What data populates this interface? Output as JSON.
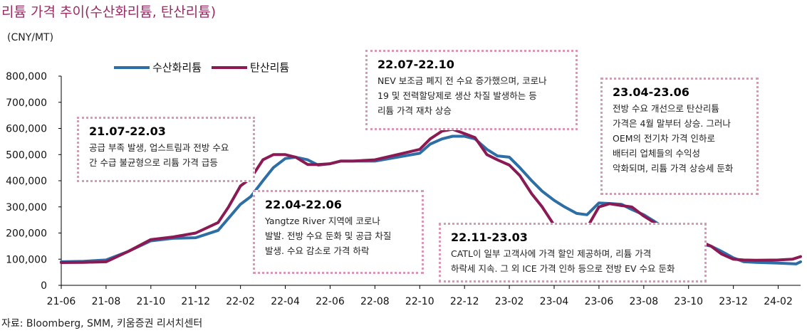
{
  "title": "리튬 가격 추이(수산화리튬, 탄산리튬)",
  "unit": "(CNY/MT)",
  "source": "자료: Bloomberg, SMM, 키움증권 리서치센터",
  "colors": {
    "hydroxide": "#2e6ea6",
    "carbonate": "#8b1a54",
    "annotation_border": "#d79ab5",
    "title": "#9c2a64"
  },
  "legend": [
    {
      "label": "수산화리튬",
      "color": "#2e6ea6"
    },
    {
      "label": "탄산리튬",
      "color": "#8b1a54"
    }
  ],
  "annotations": [
    {
      "period": "21.07-22.03",
      "text": "공급 부족 발생, 업스트림과 전방 수요\n간 수급 불균형으로 리튬 가격 급등"
    },
    {
      "period": "22.04-22.06",
      "text": "Yangtze River 지역에 코로나\n발발. 전방 수요 둔화 및 공급 차질\n발생. 수요 감소로 가격 하락"
    },
    {
      "period": "22.07-22.10",
      "text": "NEV 보조금 폐지 전 수요 증가했으며, 코로나\n19 및 전력할당제로 생산 차질 발생하는 등\n리튬 가격 재차 상승"
    },
    {
      "period": "22.11-23.03",
      "text": "CATL이 일부 고객사에 가격 할인 제공하며, 리튬 가격\n하락세 지속. 그 외 ICE 가격 인하 등으로 전방 EV 수요 둔화"
    },
    {
      "period": "23.04-23.06",
      "text": "전방 수요 개선으로 탄산리튬\n가격은 4월 말부터 상승. 그러나\nOEM의 전기차 가격 인하로\n배터리 업체들의 수익성\n악화되며, 리튬 가격 상승세 둔화"
    }
  ],
  "chart_data": {
    "type": "line",
    "title": "리튬 가격 추이(수산화리튬, 탄산리튬)",
    "ylabel": "(CNY/MT)",
    "ylim": [
      0,
      800000
    ],
    "yticks": [
      0,
      100000,
      200000,
      300000,
      400000,
      500000,
      600000,
      700000,
      800000
    ],
    "ytick_labels": [
      "0",
      "100,000",
      "200,000",
      "300,000",
      "400,000",
      "500,000",
      "600,000",
      "700,000",
      "800,000"
    ],
    "xlim": [
      "2021-06",
      "2024-03"
    ],
    "xtick_labels": [
      "21-06",
      "21-08",
      "21-10",
      "21-12",
      "22-02",
      "22-04",
      "22-06",
      "22-08",
      "22-10",
      "22-12",
      "23-02",
      "23-04",
      "23-06",
      "23-08",
      "23-10",
      "23-12",
      "24-02"
    ],
    "grid": false,
    "legend_position": "top-left",
    "series": [
      {
        "name": "수산화리튬",
        "color": "#2e6ea6",
        "points": [
          [
            "2021-06-01",
            90000
          ],
          [
            "2021-07-01",
            92000
          ],
          [
            "2021-08-01",
            97000
          ],
          [
            "2021-09-01",
            130000
          ],
          [
            "2021-10-01",
            170000
          ],
          [
            "2021-11-01",
            180000
          ],
          [
            "2021-12-01",
            182000
          ],
          [
            "2022-01-01",
            210000
          ],
          [
            "2022-02-01",
            310000
          ],
          [
            "2022-02-15",
            340000
          ],
          [
            "2022-03-01",
            400000
          ],
          [
            "2022-03-15",
            450000
          ],
          [
            "2022-04-01",
            485000
          ],
          [
            "2022-04-15",
            490000
          ],
          [
            "2022-05-01",
            480000
          ],
          [
            "2022-05-15",
            460000
          ],
          [
            "2022-06-01",
            465000
          ],
          [
            "2022-06-15",
            475000
          ],
          [
            "2022-07-01",
            475000
          ],
          [
            "2022-08-01",
            475000
          ],
          [
            "2022-09-01",
            490000
          ],
          [
            "2022-10-01",
            505000
          ],
          [
            "2022-10-15",
            540000
          ],
          [
            "2022-11-01",
            560000
          ],
          [
            "2022-11-15",
            570000
          ],
          [
            "2022-12-01",
            570000
          ],
          [
            "2022-12-15",
            560000
          ],
          [
            "2023-01-01",
            520000
          ],
          [
            "2023-01-15",
            495000
          ],
          [
            "2023-02-01",
            490000
          ],
          [
            "2023-02-15",
            450000
          ],
          [
            "2023-03-01",
            400000
          ],
          [
            "2023-03-15",
            360000
          ],
          [
            "2023-04-01",
            325000
          ],
          [
            "2023-04-15",
            300000
          ],
          [
            "2023-05-01",
            275000
          ],
          [
            "2023-05-15",
            270000
          ],
          [
            "2023-06-01",
            315000
          ],
          [
            "2023-06-15",
            313000
          ],
          [
            "2023-07-01",
            310000
          ],
          [
            "2023-07-15",
            290000
          ],
          [
            "2023-08-01",
            270000
          ],
          [
            "2023-08-15",
            245000
          ],
          [
            "2023-09-01",
            215000
          ],
          [
            "2023-09-15",
            190000
          ],
          [
            "2023-10-01",
            165000
          ],
          [
            "2023-10-15",
            160000
          ],
          [
            "2023-11-01",
            150000
          ],
          [
            "2023-11-15",
            130000
          ],
          [
            "2023-12-01",
            105000
          ],
          [
            "2023-12-15",
            90000
          ],
          [
            "2024-01-01",
            88000
          ],
          [
            "2024-02-01",
            85000
          ],
          [
            "2024-02-25",
            82000
          ],
          [
            "2024-03-01",
            90000
          ]
        ]
      },
      {
        "name": "탄산리튬",
        "color": "#8b1a54",
        "points": [
          [
            "2021-06-01",
            87000
          ],
          [
            "2021-07-01",
            88000
          ],
          [
            "2021-08-01",
            90000
          ],
          [
            "2021-09-01",
            130000
          ],
          [
            "2021-10-01",
            175000
          ],
          [
            "2021-11-01",
            185000
          ],
          [
            "2021-12-01",
            200000
          ],
          [
            "2022-01-01",
            240000
          ],
          [
            "2022-01-15",
            300000
          ],
          [
            "2022-02-01",
            380000
          ],
          [
            "2022-02-15",
            410000
          ],
          [
            "2022-03-01",
            480000
          ],
          [
            "2022-03-15",
            500000
          ],
          [
            "2022-04-01",
            500000
          ],
          [
            "2022-04-15",
            490000
          ],
          [
            "2022-05-01",
            462000
          ],
          [
            "2022-05-15",
            462000
          ],
          [
            "2022-06-01",
            465000
          ],
          [
            "2022-06-15",
            475000
          ],
          [
            "2022-07-01",
            475000
          ],
          [
            "2022-08-01",
            480000
          ],
          [
            "2022-09-01",
            500000
          ],
          [
            "2022-10-01",
            520000
          ],
          [
            "2022-10-15",
            560000
          ],
          [
            "2022-11-01",
            590000
          ],
          [
            "2022-11-15",
            597000
          ],
          [
            "2022-12-01",
            580000
          ],
          [
            "2022-12-15",
            565000
          ],
          [
            "2023-01-01",
            500000
          ],
          [
            "2023-01-15",
            480000
          ],
          [
            "2023-02-01",
            460000
          ],
          [
            "2023-02-15",
            420000
          ],
          [
            "2023-03-01",
            350000
          ],
          [
            "2023-03-15",
            300000
          ],
          [
            "2023-04-01",
            230000
          ],
          [
            "2023-04-15",
            175000
          ],
          [
            "2023-05-01",
            170000
          ],
          [
            "2023-05-15",
            220000
          ],
          [
            "2023-06-01",
            300000
          ],
          [
            "2023-06-15",
            312000
          ],
          [
            "2023-07-01",
            305000
          ],
          [
            "2023-07-15",
            300000
          ],
          [
            "2023-08-01",
            265000
          ],
          [
            "2023-08-15",
            240000
          ],
          [
            "2023-09-01",
            205000
          ],
          [
            "2023-09-15",
            180000
          ],
          [
            "2023-10-01",
            168000
          ],
          [
            "2023-10-15",
            170000
          ],
          [
            "2023-11-01",
            150000
          ],
          [
            "2023-11-15",
            120000
          ],
          [
            "2023-12-01",
            100000
          ],
          [
            "2023-12-15",
            97000
          ],
          [
            "2024-01-01",
            96000
          ],
          [
            "2024-02-01",
            97000
          ],
          [
            "2024-02-20",
            100000
          ],
          [
            "2024-03-01",
            110000
          ]
        ]
      }
    ]
  }
}
